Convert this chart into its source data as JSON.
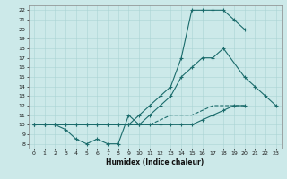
{
  "xlabel": "Humidex (Indice chaleur)",
  "background_color": "#cce9e9",
  "grid_color": "#aad4d4",
  "line_color": "#1a6b6b",
  "xlim": [
    -0.5,
    23.5
  ],
  "ylim": [
    7.5,
    22.5
  ],
  "xticks": [
    0,
    1,
    2,
    3,
    4,
    5,
    6,
    7,
    8,
    9,
    10,
    11,
    12,
    13,
    14,
    15,
    16,
    17,
    18,
    19,
    20,
    21,
    22,
    23
  ],
  "yticks": [
    8,
    9,
    10,
    11,
    12,
    13,
    14,
    15,
    16,
    17,
    18,
    19,
    20,
    21,
    22
  ],
  "line1_y": [
    10,
    10,
    10,
    10,
    10,
    10,
    10,
    10,
    10,
    10,
    11,
    12,
    13,
    14,
    17,
    22,
    22,
    22,
    22,
    21,
    20,
    null,
    null,
    null
  ],
  "line2_y": [
    10,
    10,
    10,
    10,
    10,
    10,
    10,
    10,
    10,
    10,
    10,
    11,
    12,
    13,
    15,
    16,
    17,
    17,
    18,
    null,
    15,
    14,
    13,
    12
  ],
  "line3_y": [
    10,
    10,
    10,
    9.5,
    8.5,
    8,
    8.5,
    8,
    8,
    11,
    10,
    10,
    10,
    10,
    10,
    10,
    10.5,
    11,
    11.5,
    12,
    12,
    null,
    null,
    null
  ],
  "line4_y": [
    10,
    10,
    10,
    10,
    10,
    10,
    10,
    10,
    10,
    10,
    10,
    10,
    10.5,
    11,
    11,
    11,
    11.5,
    12,
    12,
    12,
    12,
    null,
    null,
    null
  ]
}
